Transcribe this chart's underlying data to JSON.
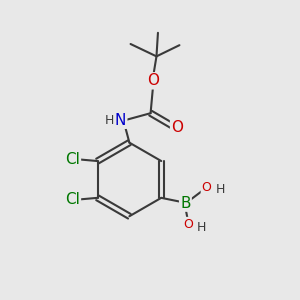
{
  "background_color": "#e8e8e8",
  "bond_color": "#3a3a3a",
  "bond_width": 1.5,
  "colors": {
    "C": "#3a3a3a",
    "H": "#3a3a3a",
    "N": "#0000cc",
    "O": "#cc0000",
    "B": "#007700",
    "Cl": "#007700"
  },
  "font_size_atom": 11,
  "font_size_small": 9
}
